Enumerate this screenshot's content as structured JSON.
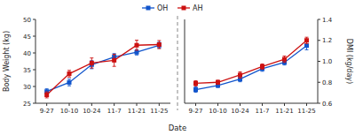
{
  "chart_data": [
    {
      "type": "line",
      "categories": [
        "9-27",
        "10-10",
        "10-24",
        "11-7",
        "11-21",
        "11-25"
      ],
      "ylabel": "Body Weight (kg)",
      "xlabel": "Date",
      "ylim": [
        25,
        50
      ],
      "yticks": [
        25,
        30,
        35,
        40,
        45,
        50
      ],
      "marker": "square",
      "line_style": "solid",
      "legend": "top",
      "series": [
        {
          "name": "OH",
          "color": "#1155cc",
          "values": [
            28.5,
            31.2,
            36.5,
            38.8,
            40.2,
            42.3
          ],
          "errors": [
            0.8,
            1.0,
            1.2,
            1.0,
            0.8,
            0.9
          ]
        },
        {
          "name": "AH",
          "color": "#cc1111",
          "values": [
            27.5,
            33.8,
            37.0,
            37.8,
            42.3,
            42.5
          ],
          "errors": [
            0.9,
            1.0,
            1.5,
            1.8,
            1.5,
            1.2
          ]
        }
      ]
    },
    {
      "type": "line",
      "categories": [
        "9-27",
        "10-10",
        "10-24",
        "11-7",
        "11-21",
        "11-25"
      ],
      "y2label": "DMI (kg/day)",
      "ylim": [
        0.6,
        1.4
      ],
      "yticks": [],
      "y2lim": [
        0.6,
        1.4
      ],
      "y2ticks": [
        0.6,
        0.8,
        {
          "value": 1.0,
          "label": "1.0"
        },
        1.2,
        1.4
      ],
      "marker": "square",
      "line_style": "solid",
      "series": [
        {
          "color": "#1155cc",
          "values": [
            0.73,
            0.77,
            0.83,
            0.93,
            0.99,
            1.15
          ],
          "errors": [
            0.025,
            0.02,
            0.025,
            0.025,
            0.025,
            0.04
          ]
        },
        {
          "color": "#cc1111",
          "axis": "y2",
          "values": [
            0.79,
            0.8,
            0.87,
            0.95,
            1.02,
            1.2
          ],
          "errors": [
            0.025,
            0.02,
            0.03,
            0.025,
            0.03,
            0.03
          ]
        }
      ]
    }
  ]
}
